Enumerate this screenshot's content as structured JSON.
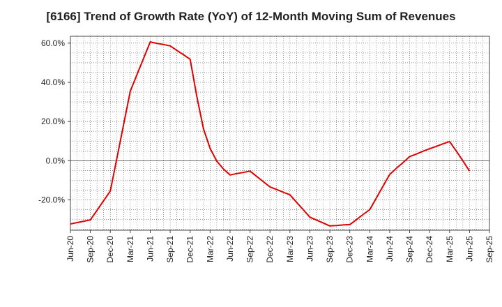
{
  "chart_data": {
    "type": "line",
    "title": "[6166]  Trend of Growth Rate (YoY) of 12-Month Moving Sum of Revenues",
    "xlabel": "",
    "ylabel": "",
    "x_tick_labels": [
      "Jun-20",
      "Sep-20",
      "Dec-20",
      "Mar-21",
      "Jun-21",
      "Sep-21",
      "Dec-21",
      "Mar-22",
      "Jun-22",
      "Sep-22",
      "Dec-22",
      "Mar-23",
      "Jun-23",
      "Sep-23",
      "Dec-23",
      "Mar-24",
      "Jun-24",
      "Sep-24",
      "Dec-24",
      "Mar-25",
      "Jun-25",
      "Sep-25"
    ],
    "y_tick_labels": [
      "60.0%",
      "40.0%",
      "20.0%",
      "0.0%",
      "-20.0%"
    ],
    "y_ticks": [
      60,
      40,
      20,
      0,
      -20
    ],
    "ylim": [
      -35.5,
      63.5
    ],
    "grid": true,
    "line_color": "#e00000",
    "series": [
      {
        "x": [
          "2020-06",
          "2020-07",
          "2020-08",
          "2020-09",
          "2020-10",
          "2020-11",
          "2020-12",
          "2021-01",
          "2021-02",
          "2021-03",
          "2021-04",
          "2021-05",
          "2021-06",
          "2021-07",
          "2021-08",
          "2021-09",
          "2021-10",
          "2021-11",
          "2021-12",
          "2022-01",
          "2022-02",
          "2022-03",
          "2022-04",
          "2022-05",
          "2022-06",
          "2022-07",
          "2022-08",
          "2022-09",
          "2022-10",
          "2022-11",
          "2022-12",
          "2023-01",
          "2023-02",
          "2023-03",
          "2023-04",
          "2023-05",
          "2023-06",
          "2023-07",
          "2023-08",
          "2023-09",
          "2023-10",
          "2023-11",
          "2023-12",
          "2024-01",
          "2024-02",
          "2024-03",
          "2024-04",
          "2024-05",
          "2024-06",
          "2024-07",
          "2024-08",
          "2024-09",
          "2024-10",
          "2024-11",
          "2024-12",
          "2025-01",
          "2025-02",
          "2025-03",
          "2025-04",
          "2025-05",
          "2025-06"
        ],
        "values": [
          -32.3,
          -31.6,
          -30.9,
          -30.2,
          -25.3,
          -20.4,
          -15.5,
          1.5,
          18.5,
          35.5,
          43.9,
          52.2,
          60.6,
          59.9,
          59.3,
          58.6,
          56.3,
          54.1,
          51.8,
          32.8,
          16.3,
          6.3,
          -0.2,
          -4.2,
          -7.3,
          -6.6,
          -6.0,
          -5.3,
          -8.0,
          -10.7,
          -13.4,
          -14.7,
          -16.1,
          -17.4,
          -21.2,
          -25.0,
          -28.8,
          -30.3,
          -31.8,
          -33.3,
          -33.1,
          -32.8,
          -32.6,
          -30.1,
          -27.5,
          -25.0,
          -19.0,
          -13.0,
          -7.0,
          -3.9,
          -1.0,
          2.1,
          3.4,
          4.8,
          6.1,
          7.3,
          8.6,
          9.8,
          5.0,
          0,
          -5.3
        ]
      }
    ]
  }
}
